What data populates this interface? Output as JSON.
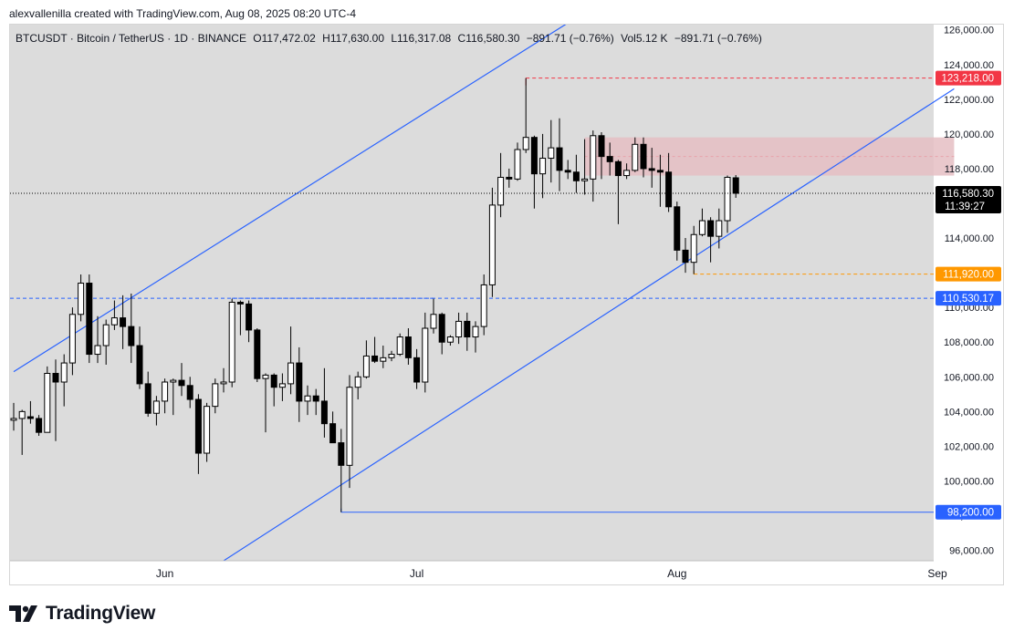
{
  "header": {
    "byline": "alexvallenilla created with TradingView.com, Aug 08, 2025 08:20 UTC-4"
  },
  "legend": {
    "symbol": "BTCUSDT · Bitcoin / TetherUS · 1D · BINANCE",
    "open": "O117,472.02",
    "high": "H117,630.00",
    "low": "L116,317.08",
    "close": "C116,580.30",
    "change": "−891.71 (−0.76%)",
    "volume": "Vol5.12 K",
    "volume_change": "−891.71 (−0.76%)"
  },
  "footer": {
    "brand": "TradingView"
  },
  "colors": {
    "background": "#dcdcdc",
    "candle_up": "#ffffff",
    "candle_down": "#000000",
    "trendline": "#2962ff",
    "resistance_zone": "#e5bec3",
    "label_red": "#f23645",
    "label_orange": "#ff9800",
    "label_blue": "#2962ff",
    "label_black": "#000000"
  },
  "chart_data": {
    "type": "candlestick",
    "title": "BTCUSDT · Bitcoin / TetherUS · 1D · BINANCE",
    "xlabel": "",
    "ylabel": "",
    "ylim": [
      95400,
      126300
    ],
    "grid": false,
    "x_ticks": [
      {
        "label": "Jun",
        "date": "2025-06-01"
      },
      {
        "label": "Jul",
        "date": "2025-07-01"
      },
      {
        "label": "Aug",
        "date": "2025-08-01"
      },
      {
        "label": "Sep",
        "date": "2025-09-01"
      }
    ],
    "y_ticks": [
      96000,
      98000,
      100000,
      102000,
      104000,
      106000,
      108000,
      110000,
      112000,
      114000,
      116000,
      118000,
      120000,
      122000,
      124000,
      126000
    ],
    "y_tick_labels": [
      "96,000.00",
      "98,000.00",
      "100,000.00",
      "102,000.00",
      "104,000.00",
      "106,000.00",
      "108,000.00",
      "110,000.00",
      "112,000.00",
      "114,000.00",
      "116,000.00",
      "118,000.00",
      "120,000.00",
      "122,000.00",
      "124,000.00",
      "126,000.00"
    ],
    "candles": [
      {
        "date": "2025-05-14",
        "o": 103500,
        "h": 104500,
        "l": 102900,
        "c": 103600
      },
      {
        "date": "2025-05-15",
        "o": 103600,
        "h": 104100,
        "l": 101500,
        "c": 104000
      },
      {
        "date": "2025-05-16",
        "o": 103700,
        "h": 104600,
        "l": 103300,
        "c": 103600
      },
      {
        "date": "2025-05-17",
        "o": 103600,
        "h": 103800,
        "l": 102600,
        "c": 102800
      },
      {
        "date": "2025-05-18",
        "o": 102800,
        "h": 106600,
        "l": 102800,
        "c": 106200
      },
      {
        "date": "2025-05-19",
        "o": 106200,
        "h": 107000,
        "l": 102300,
        "c": 105700
      },
      {
        "date": "2025-05-20",
        "o": 105700,
        "h": 107300,
        "l": 104300,
        "c": 106800
      },
      {
        "date": "2025-05-21",
        "o": 106800,
        "h": 110000,
        "l": 106100,
        "c": 109600
      },
      {
        "date": "2025-05-22",
        "o": 109600,
        "h": 111900,
        "l": 109200,
        "c": 111400
      },
      {
        "date": "2025-05-23",
        "o": 111400,
        "h": 111900,
        "l": 106800,
        "c": 107300
      },
      {
        "date": "2025-05-24",
        "o": 107300,
        "h": 109500,
        "l": 106800,
        "c": 107800
      },
      {
        "date": "2025-05-25",
        "o": 107800,
        "h": 109300,
        "l": 106700,
        "c": 109000
      },
      {
        "date": "2025-05-26",
        "o": 109000,
        "h": 110400,
        "l": 108700,
        "c": 109400
      },
      {
        "date": "2025-05-27",
        "o": 109400,
        "h": 110700,
        "l": 107600,
        "c": 108900
      },
      {
        "date": "2025-05-28",
        "o": 108900,
        "h": 110800,
        "l": 106800,
        "c": 107800
      },
      {
        "date": "2025-05-29",
        "o": 107800,
        "h": 108900,
        "l": 105300,
        "c": 105600
      },
      {
        "date": "2025-05-30",
        "o": 105600,
        "h": 106300,
        "l": 103700,
        "c": 103900
      },
      {
        "date": "2025-05-31",
        "o": 103900,
        "h": 104900,
        "l": 103200,
        "c": 104600
      },
      {
        "date": "2025-06-01",
        "o": 104600,
        "h": 105900,
        "l": 103900,
        "c": 105700
      },
      {
        "date": "2025-06-02",
        "o": 105700,
        "h": 105900,
        "l": 103800,
        "c": 105800
      },
      {
        "date": "2025-06-03",
        "o": 105800,
        "h": 106800,
        "l": 104900,
        "c": 105500
      },
      {
        "date": "2025-06-04",
        "o": 105500,
        "h": 106000,
        "l": 104200,
        "c": 104700
      },
      {
        "date": "2025-06-05",
        "o": 104700,
        "h": 105000,
        "l": 100400,
        "c": 101600
      },
      {
        "date": "2025-06-06",
        "o": 101600,
        "h": 104500,
        "l": 101100,
        "c": 104300
      },
      {
        "date": "2025-06-07",
        "o": 104300,
        "h": 105900,
        "l": 103900,
        "c": 105600
      },
      {
        "date": "2025-06-08",
        "o": 105600,
        "h": 106500,
        "l": 105100,
        "c": 105700
      },
      {
        "date": "2025-06-09",
        "o": 105700,
        "h": 110500,
        "l": 105400,
        "c": 110300
      },
      {
        "date": "2025-06-10",
        "o": 110300,
        "h": 110400,
        "l": 108400,
        "c": 110200
      },
      {
        "date": "2025-06-11",
        "o": 110200,
        "h": 110400,
        "l": 108000,
        "c": 108700
      },
      {
        "date": "2025-06-12",
        "o": 108700,
        "h": 108800,
        "l": 105700,
        "c": 105900
      },
      {
        "date": "2025-06-13",
        "o": 105900,
        "h": 106200,
        "l": 102800,
        "c": 106100
      },
      {
        "date": "2025-06-14",
        "o": 106100,
        "h": 106200,
        "l": 104300,
        "c": 105400
      },
      {
        "date": "2025-06-15",
        "o": 105400,
        "h": 106200,
        "l": 104600,
        "c": 105600
      },
      {
        "date": "2025-06-16",
        "o": 105600,
        "h": 108900,
        "l": 105000,
        "c": 106800
      },
      {
        "date": "2025-06-17",
        "o": 106800,
        "h": 107700,
        "l": 103400,
        "c": 104600
      },
      {
        "date": "2025-06-18",
        "o": 104600,
        "h": 105500,
        "l": 103800,
        "c": 104900
      },
      {
        "date": "2025-06-19",
        "o": 104900,
        "h": 105300,
        "l": 103800,
        "c": 104600
      },
      {
        "date": "2025-06-20",
        "o": 104600,
        "h": 106500,
        "l": 102500,
        "c": 103300
      },
      {
        "date": "2025-06-21",
        "o": 103300,
        "h": 104000,
        "l": 102300,
        "c": 102200
      },
      {
        "date": "2025-06-22",
        "o": 102200,
        "h": 103000,
        "l": 98200,
        "c": 100900
      },
      {
        "date": "2025-06-23",
        "o": 100900,
        "h": 106100,
        "l": 99600,
        "c": 105400
      },
      {
        "date": "2025-06-24",
        "o": 105400,
        "h": 106300,
        "l": 104700,
        "c": 106000
      },
      {
        "date": "2025-06-25",
        "o": 106000,
        "h": 108100,
        "l": 105900,
        "c": 107200
      },
      {
        "date": "2025-06-26",
        "o": 107200,
        "h": 108300,
        "l": 106800,
        "c": 106900
      },
      {
        "date": "2025-06-27",
        "o": 106900,
        "h": 107800,
        "l": 106500,
        "c": 107100
      },
      {
        "date": "2025-06-28",
        "o": 107100,
        "h": 107500,
        "l": 106900,
        "c": 107300
      },
      {
        "date": "2025-06-29",
        "o": 107300,
        "h": 108500,
        "l": 107200,
        "c": 108300
      },
      {
        "date": "2025-06-30",
        "o": 108300,
        "h": 108800,
        "l": 106700,
        "c": 107100
      },
      {
        "date": "2025-07-01",
        "o": 107100,
        "h": 107600,
        "l": 105300,
        "c": 105700
      },
      {
        "date": "2025-07-02",
        "o": 105700,
        "h": 109700,
        "l": 105100,
        "c": 108800
      },
      {
        "date": "2025-07-03",
        "o": 108800,
        "h": 110500,
        "l": 108500,
        "c": 109600
      },
      {
        "date": "2025-07-04",
        "o": 109600,
        "h": 109700,
        "l": 107300,
        "c": 108000
      },
      {
        "date": "2025-07-05",
        "o": 108000,
        "h": 108400,
        "l": 107800,
        "c": 108300
      },
      {
        "date": "2025-07-06",
        "o": 108300,
        "h": 109700,
        "l": 107900,
        "c": 109200
      },
      {
        "date": "2025-07-07",
        "o": 109200,
        "h": 109700,
        "l": 107500,
        "c": 108300
      },
      {
        "date": "2025-07-08",
        "o": 108300,
        "h": 109200,
        "l": 107400,
        "c": 108900
      },
      {
        "date": "2025-07-09",
        "o": 108900,
        "h": 111900,
        "l": 108400,
        "c": 111300
      },
      {
        "date": "2025-07-10",
        "o": 111300,
        "h": 116900,
        "l": 110600,
        "c": 115900
      },
      {
        "date": "2025-07-11",
        "o": 115900,
        "h": 118900,
        "l": 115200,
        "c": 117500
      },
      {
        "date": "2025-07-12",
        "o": 117500,
        "h": 118000,
        "l": 116900,
        "c": 117400
      },
      {
        "date": "2025-07-13",
        "o": 117400,
        "h": 119500,
        "l": 117300,
        "c": 119100
      },
      {
        "date": "2025-07-14",
        "o": 119100,
        "h": 123218,
        "l": 118900,
        "c": 119800
      },
      {
        "date": "2025-07-15",
        "o": 119800,
        "h": 119900,
        "l": 115700,
        "c": 117700
      },
      {
        "date": "2025-07-16",
        "o": 117700,
        "h": 120000,
        "l": 116300,
        "c": 118600
      },
      {
        "date": "2025-07-17",
        "o": 118600,
        "h": 120800,
        "l": 117200,
        "c": 119200
      },
      {
        "date": "2025-07-18",
        "o": 119200,
        "h": 120900,
        "l": 116700,
        "c": 117900
      },
      {
        "date": "2025-07-19",
        "o": 117900,
        "h": 118500,
        "l": 117400,
        "c": 117800
      },
      {
        "date": "2025-07-20",
        "o": 117800,
        "h": 118800,
        "l": 116600,
        "c": 117300
      },
      {
        "date": "2025-07-21",
        "o": 117300,
        "h": 119700,
        "l": 116500,
        "c": 117400
      },
      {
        "date": "2025-07-22",
        "o": 117400,
        "h": 120200,
        "l": 116100,
        "c": 119900
      },
      {
        "date": "2025-07-23",
        "o": 119900,
        "h": 120100,
        "l": 117400,
        "c": 118700
      },
      {
        "date": "2025-07-24",
        "o": 118700,
        "h": 119500,
        "l": 117600,
        "c": 118400
      },
      {
        "date": "2025-07-25",
        "o": 118400,
        "h": 118500,
        "l": 114800,
        "c": 117600
      },
      {
        "date": "2025-07-26",
        "o": 117600,
        "h": 118300,
        "l": 117400,
        "c": 117900
      },
      {
        "date": "2025-07-27",
        "o": 117900,
        "h": 119800,
        "l": 117800,
        "c": 119400
      },
      {
        "date": "2025-07-28",
        "o": 119400,
        "h": 119800,
        "l": 117500,
        "c": 118000
      },
      {
        "date": "2025-07-29",
        "o": 118000,
        "h": 119200,
        "l": 116900,
        "c": 117900
      },
      {
        "date": "2025-07-30",
        "o": 117900,
        "h": 118800,
        "l": 115800,
        "c": 117800
      },
      {
        "date": "2025-07-31",
        "o": 117800,
        "h": 118900,
        "l": 115500,
        "c": 115800
      },
      {
        "date": "2025-08-01",
        "o": 115800,
        "h": 116100,
        "l": 112700,
        "c": 113300
      },
      {
        "date": "2025-08-02",
        "o": 113300,
        "h": 114000,
        "l": 112000,
        "c": 112600
      },
      {
        "date": "2025-08-03",
        "o": 112600,
        "h": 114700,
        "l": 111920,
        "c": 114200
      },
      {
        "date": "2025-08-04",
        "o": 114200,
        "h": 115700,
        "l": 114100,
        "c": 115000
      },
      {
        "date": "2025-08-05",
        "o": 115000,
        "h": 115200,
        "l": 112600,
        "c": 114100
      },
      {
        "date": "2025-08-06",
        "o": 114100,
        "h": 115700,
        "l": 113400,
        "c": 115000
      },
      {
        "date": "2025-08-07",
        "o": 115000,
        "h": 117600,
        "l": 114300,
        "c": 117500
      },
      {
        "date": "2025-08-08",
        "o": 117472.02,
        "h": 117630,
        "l": 116317.08,
        "c": 116580.3
      }
    ],
    "horizontal_levels": [
      {
        "price": 123218,
        "label": "123,218.00",
        "color": "#f23645",
        "style": "dashed"
      },
      {
        "price": 111920,
        "label": "111,920.00",
        "color": "#ff9800",
        "style": "dashed"
      },
      {
        "price": 110530.17,
        "label": "110,530.17",
        "color": "#2962ff",
        "style": "dashed"
      },
      {
        "price": 98200,
        "label": "98,200.00",
        "color": "#2962ff",
        "style": "solid"
      }
    ],
    "last_price": {
      "price": 116580.3,
      "label": "116,580.30",
      "countdown": "11:39:27"
    },
    "trendlines": [
      {
        "from": {
          "date": "2025-05-14",
          "price": 106300
        },
        "to": {
          "date": "2025-07-20",
          "price": 126700
        }
      },
      {
        "from": {
          "date": "2025-06-08",
          "price": 95400
        },
        "to": {
          "date": "2025-09-03",
          "price": 122600
        }
      }
    ],
    "resistance_zone": {
      "from_date": "2025-07-21",
      "to_date": "2025-09-03",
      "price_low": 117600,
      "price_high": 119800,
      "midline": 118700
    }
  }
}
